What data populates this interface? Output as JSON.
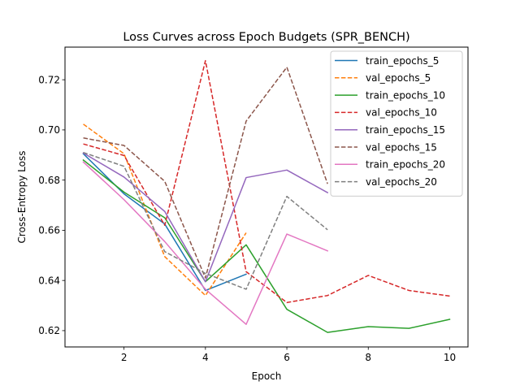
{
  "chart_data": {
    "type": "line",
    "title": "Loss Curves across Epoch Budgets (SPR_BENCH)",
    "xlabel": "Epoch",
    "ylabel": "Cross-Entropy Loss",
    "xlim": [
      0.55,
      10.45
    ],
    "ylim": [
      0.6135,
      0.733
    ],
    "xticks": [
      2,
      4,
      6,
      8,
      10
    ],
    "yticks": [
      0.62,
      0.64,
      0.66,
      0.68,
      0.7,
      0.72
    ],
    "ytick_labels": [
      "0.62",
      "0.64",
      "0.66",
      "0.68",
      "0.70",
      "0.72"
    ],
    "grid": false,
    "legend_position": "top-right",
    "series": [
      {
        "name": "train_epochs_5",
        "color": "#1f77b4",
        "dashed": false,
        "x": [
          1,
          2,
          3,
          4,
          5
        ],
        "y": [
          0.6905,
          0.6745,
          0.6625,
          0.636,
          0.6425
        ]
      },
      {
        "name": "val_epochs_5",
        "color": "#ff7f0e",
        "dashed": true,
        "x": [
          1,
          2,
          3,
          4,
          5
        ],
        "y": [
          0.7023,
          0.6905,
          0.6495,
          0.634,
          0.659
        ]
      },
      {
        "name": "train_epochs_10",
        "color": "#2ca02c",
        "dashed": false,
        "x": [
          1,
          2,
          3,
          4,
          5,
          6,
          7,
          8,
          9,
          10
        ],
        "y": [
          0.688,
          0.6752,
          0.665,
          0.6395,
          0.6542,
          0.6285,
          0.6193,
          0.6216,
          0.6209,
          0.6245
        ]
      },
      {
        "name": "val_epochs_10",
        "color": "#d62728",
        "dashed": true,
        "x": [
          1,
          2,
          3,
          4,
          5,
          6,
          7,
          8,
          9,
          10
        ],
        "y": [
          0.6944,
          0.6898,
          0.662,
          0.7276,
          0.6435,
          0.6312,
          0.634,
          0.642,
          0.636,
          0.6338
        ]
      },
      {
        "name": "train_epochs_15",
        "color": "#9467bd",
        "dashed": false,
        "x": [
          1,
          2,
          3,
          4,
          5,
          6,
          7
        ],
        "y": [
          0.6908,
          0.6812,
          0.6675,
          0.6395,
          0.681,
          0.684,
          0.675
        ]
      },
      {
        "name": "val_epochs_15",
        "color": "#8c564b",
        "dashed": true,
        "x": [
          1,
          2,
          3,
          4,
          5,
          6,
          7
        ],
        "y": [
          0.6968,
          0.6938,
          0.6795,
          0.641,
          0.7035,
          0.725,
          0.6785
        ]
      },
      {
        "name": "train_epochs_20",
        "color": "#e377c2",
        "dashed": false,
        "x": [
          1,
          2,
          3,
          4,
          5,
          6,
          7
        ],
        "y": [
          0.6872,
          0.6722,
          0.6555,
          0.6365,
          0.6225,
          0.6585,
          0.6518
        ]
      },
      {
        "name": "val_epochs_20",
        "color": "#7f7f7f",
        "dashed": true,
        "x": [
          1,
          2,
          3,
          4,
          5,
          6,
          7
        ],
        "y": [
          0.691,
          0.6855,
          0.6515,
          0.6428,
          0.6365,
          0.6735,
          0.6602
        ]
      }
    ]
  }
}
